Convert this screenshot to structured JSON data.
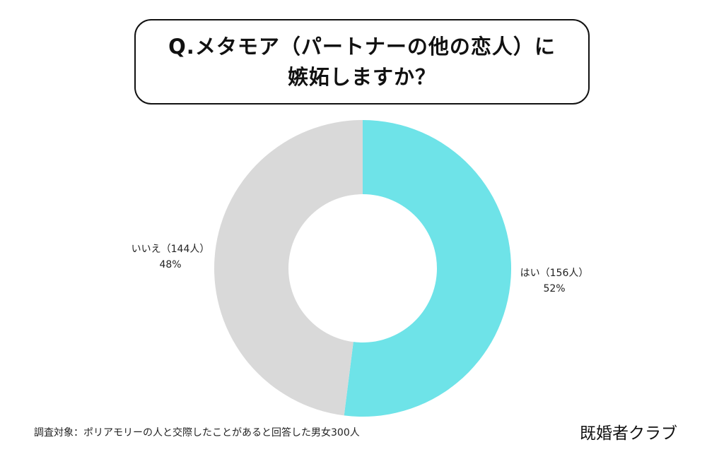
{
  "title": {
    "line1": "Q.メタモア（パートナーの他の恋人）に",
    "line2": "嫉妬しますか？"
  },
  "chart_data": {
    "type": "pie",
    "donut": true,
    "slices": [
      {
        "label": "はい",
        "count_text": "（156人）",
        "count": 156,
        "percent": 52,
        "percent_text": "52%",
        "color": "#6ee3e8"
      },
      {
        "label": "いいえ",
        "count_text": "（144人）",
        "count": 144,
        "percent": 48,
        "percent_text": "48%",
        "color": "#d9d9d9"
      }
    ]
  },
  "footnote": "調査対象：ポリアモリーの人と交際したことがあると回答した男女300人",
  "brand": "既婚者クラブ"
}
